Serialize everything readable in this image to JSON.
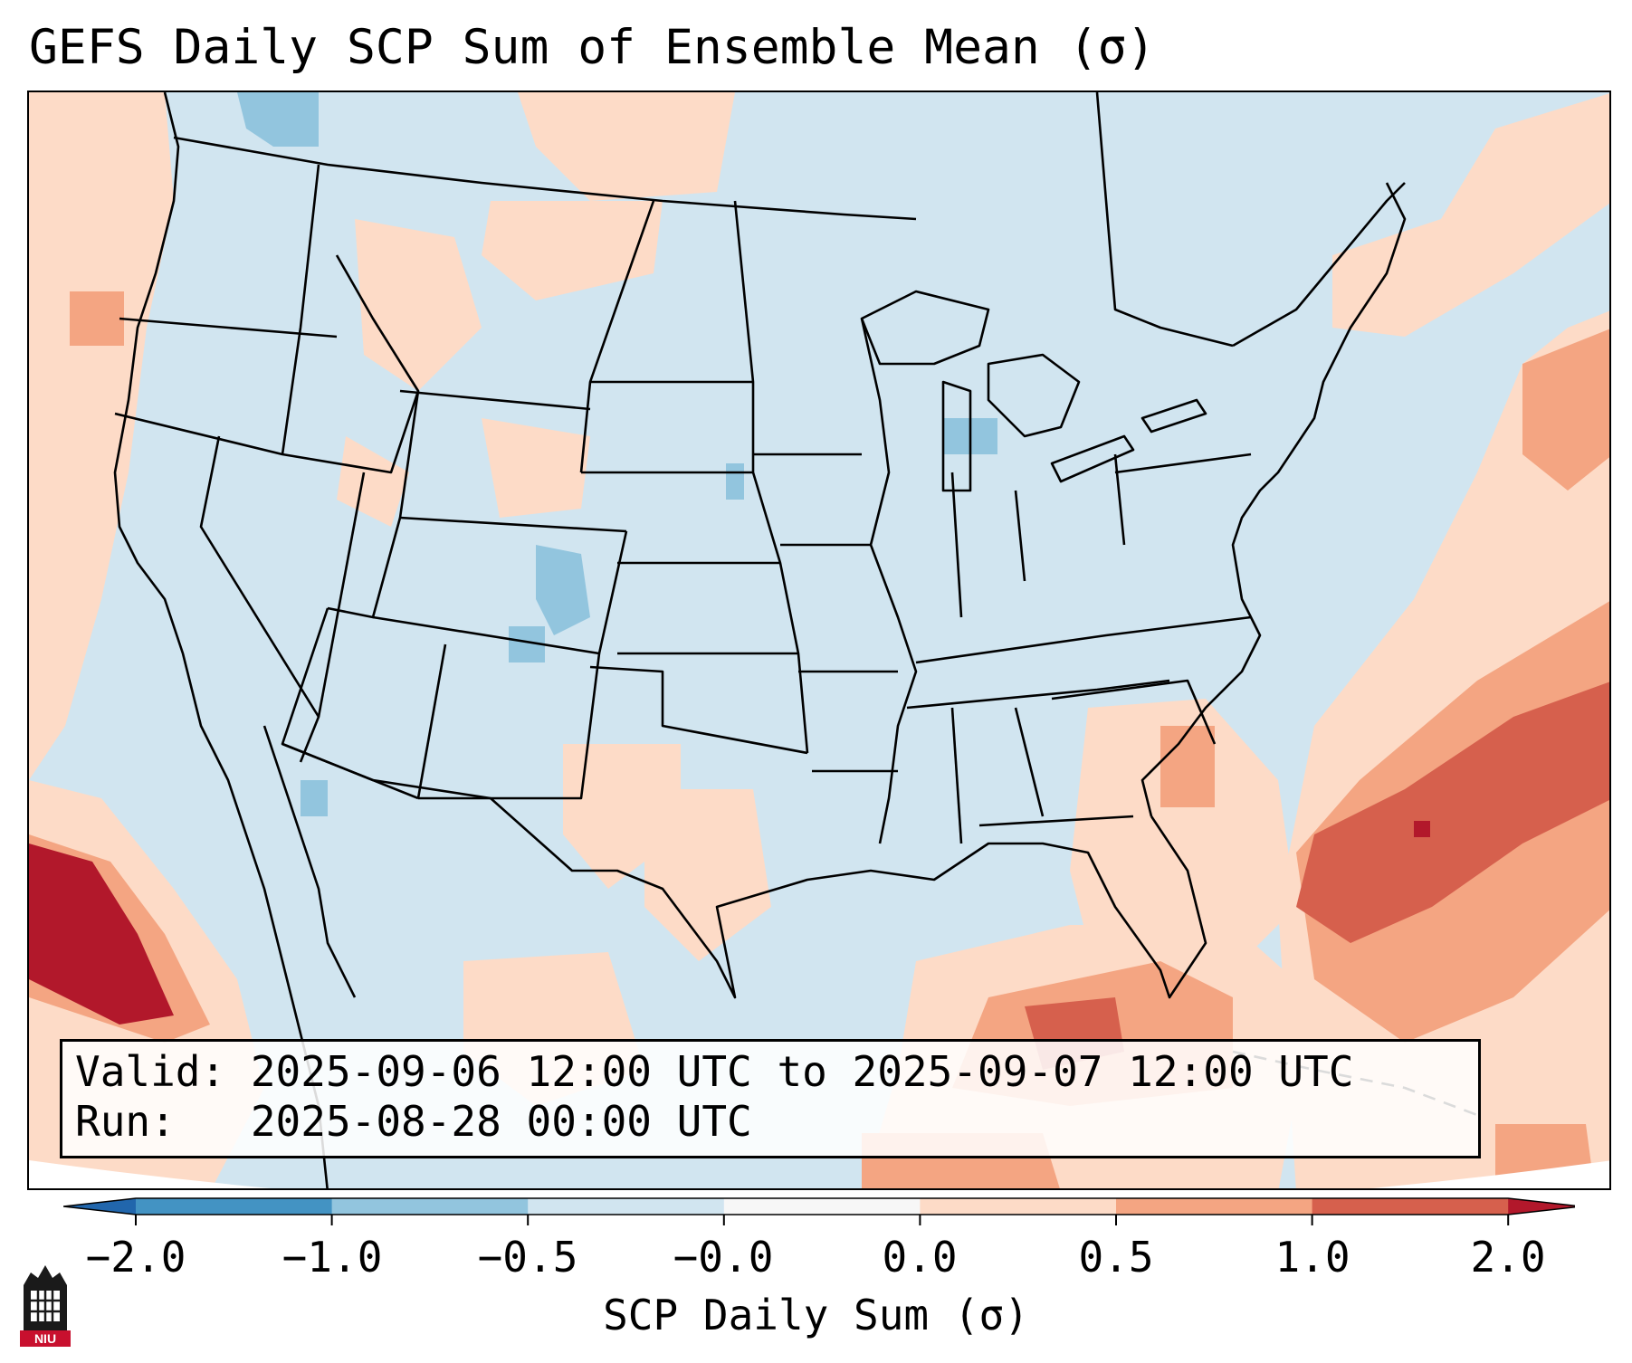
{
  "title": "GEFS Daily SCP Sum of Ensemble Mean (σ)",
  "info": {
    "valid_line": "Valid: 2025-09-06 12:00 UTC to 2025-09-07 12:00 UTC",
    "run_line": "Run:   2025-08-28 00:00 UTC"
  },
  "colorbar": {
    "label": "SCP Daily Sum (σ)",
    "ticks": [
      "−2.0",
      "−1.0",
      "−0.5",
      "−0.0",
      "0.0",
      "0.5",
      "1.0",
      "2.0"
    ],
    "colors": [
      "#2166ac",
      "#4393c3",
      "#92c5de",
      "#d1e5f0",
      "#f7f7f7",
      "#fddbc7",
      "#f4a582",
      "#d6604d",
      "#b2182b"
    ],
    "extend": "both"
  },
  "logo": {
    "text": "NIU",
    "icon": "university-tower-icon"
  },
  "map": {
    "projection": "Lambert conformal, CONUS",
    "background_color": "#d1e5f0"
  }
}
